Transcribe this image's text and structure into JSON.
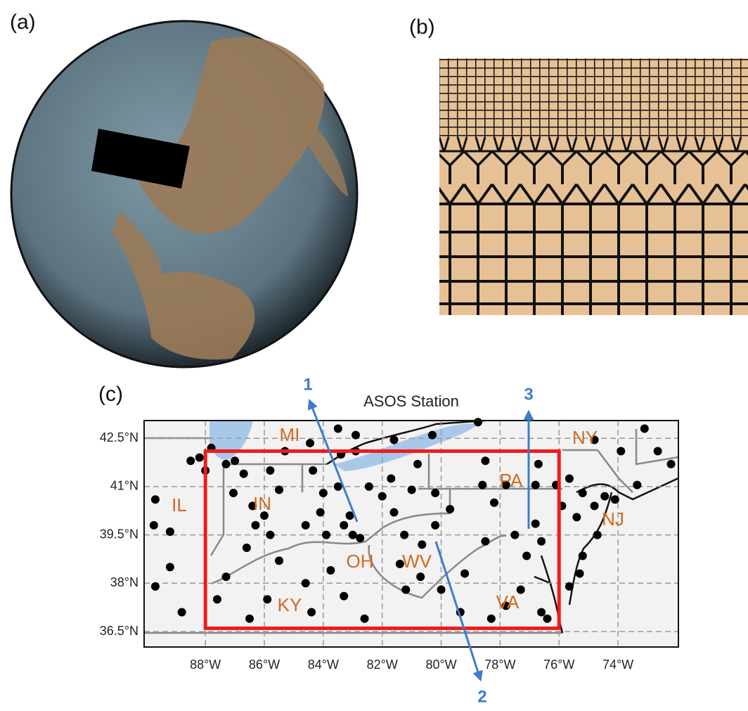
{
  "panel_labels": [
    "(a)",
    "(b)",
    "(c)"
  ],
  "arrow_labels": [
    "1",
    "2",
    "3"
  ],
  "chart_data": {
    "type": "scatter",
    "title": "ASOS Station",
    "color": "#000000",
    "grid": true,
    "xlim": [
      -90.08,
      -71.95
    ],
    "ylim": [
      36.02,
      43.05
    ],
    "xticks": [
      {
        "value": -88,
        "label": "88°W"
      },
      {
        "value": -86,
        "label": "86°W"
      },
      {
        "value": -84,
        "label": "84°W"
      },
      {
        "value": -82,
        "label": "82°W"
      },
      {
        "value": -80,
        "label": "80°W"
      },
      {
        "value": -78,
        "label": "78°W"
      },
      {
        "value": -76,
        "label": "76°W"
      },
      {
        "value": -74,
        "label": "74°W"
      }
    ],
    "yticks": [
      {
        "value": 36.5,
        "label": "36.5°N"
      },
      {
        "value": 38,
        "label": "38°N"
      },
      {
        "value": 39.5,
        "label": "39.5°N"
      },
      {
        "value": 41,
        "label": "41°N"
      },
      {
        "value": 42.5,
        "label": "42.5°N"
      }
    ],
    "region_labels": [
      "MI",
      "IL",
      "IN",
      "OH",
      "WV",
      "KY",
      "VA",
      "PA",
      "NY",
      "NJ"
    ],
    "domain": {
      "color": "#ee1c1c",
      "lon": [
        -88,
        -76
      ],
      "lat": [
        36.6,
        42.1
      ]
    },
    "x": [
      -89.7,
      -89.75,
      -89.2,
      -89.2,
      -89.7,
      -88.8,
      -88.5,
      -88.2,
      -88.0,
      -87.8,
      -87.3,
      -87.0,
      -86.7,
      -87.05,
      -85.8,
      -85.5,
      -86.4,
      -86.0,
      -86.3,
      -86.6,
      -85.8,
      -85.5,
      -87.3,
      -87.6,
      -86.5,
      -85.9,
      -84.6,
      -83.75,
      -83.3,
      -84.4,
      -82.6,
      -84.6,
      -84.1,
      -83.9,
      -83.3,
      -83.0,
      -83.1,
      -82.75,
      -84.0,
      -84.35,
      -83.5,
      -83.4,
      -82.9,
      -82.45,
      -81.7,
      -82.0,
      -81.6,
      -81.0,
      -80.8,
      -80.2,
      -79.7,
      -80.2,
      -81.25,
      -80.65,
      -81.4,
      -80.7,
      -81.2,
      -80.0,
      -79.2,
      -78.5,
      -77.5,
      -76.8,
      -76.6,
      -77.1,
      -77.3,
      -77.8,
      -76.6,
      -76.4,
      -78.3,
      -79.35,
      -78.5,
      -78.6,
      -78.2,
      -77.8,
      -76.8,
      -76.7,
      -76.1,
      -75.65,
      -75.9,
      -75.4,
      -75.2,
      -74.8,
      -74.45,
      -74.1,
      -74.7,
      -75.2,
      -75.3,
      -75.65,
      -74.8,
      -73.9,
      -73.1,
      -72.65,
      -72.2,
      -73.35,
      -80.3,
      -78.75,
      -83.5,
      -82.9,
      -84.45,
      -85.3,
      -81.6
    ],
    "y": [
      40.6,
      39.8,
      39.6,
      38.5,
      37.9,
      37.1,
      41.8,
      41.9,
      41.5,
      42.2,
      41.7,
      41.8,
      41.4,
      40.8,
      41.5,
      40.9,
      40.4,
      40.1,
      39.8,
      39.1,
      39.5,
      38.7,
      38.2,
      37.5,
      36.9,
      37.5,
      38.0,
      38.4,
      37.6,
      37.1,
      36.9,
      39.8,
      40.2,
      39.5,
      39.8,
      39.5,
      40.1,
      39.4,
      40.8,
      41.5,
      41.0,
      42.0,
      42.1,
      41.0,
      41.25,
      40.7,
      40.2,
      40.9,
      41.7,
      40.8,
      40.3,
      39.8,
      39.5,
      39.2,
      38.6,
      38.2,
      37.8,
      37.8,
      38.3,
      39.3,
      39.5,
      39.85,
      39.3,
      38.85,
      37.8,
      37.3,
      37.1,
      36.9,
      36.9,
      37.1,
      41.8,
      41.05,
      40.5,
      41.05,
      41.05,
      41.7,
      41.05,
      41.25,
      40.4,
      40.05,
      40.8,
      40.4,
      40.7,
      40.6,
      39.5,
      38.85,
      38.3,
      37.9,
      42.45,
      42.1,
      42.8,
      42.1,
      41.7,
      41.05,
      42.6,
      43.0,
      42.8,
      42.6,
      42.35,
      42.1,
      42.45
    ]
  }
}
